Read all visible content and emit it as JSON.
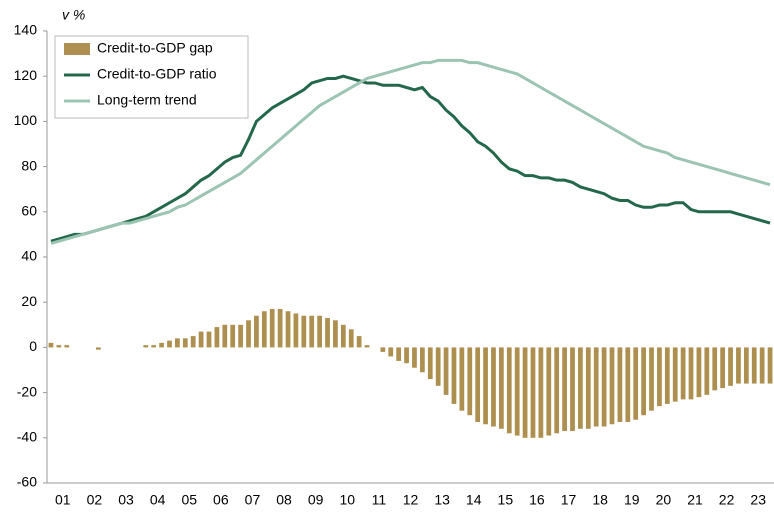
{
  "chart_data": {
    "type": "bar",
    "y_label": "v %",
    "categories": [
      "01",
      null,
      null,
      null,
      "02",
      null,
      null,
      null,
      "03",
      null,
      null,
      null,
      "04",
      null,
      null,
      null,
      "05",
      null,
      null,
      null,
      "06",
      null,
      null,
      null,
      "07",
      null,
      null,
      null,
      "08",
      null,
      null,
      null,
      "09",
      null,
      null,
      null,
      "10",
      null,
      null,
      null,
      "11",
      null,
      null,
      null,
      "12",
      null,
      null,
      null,
      "13",
      null,
      null,
      null,
      "14",
      null,
      null,
      null,
      "15",
      null,
      null,
      null,
      "16",
      null,
      null,
      null,
      "17",
      null,
      null,
      null,
      "18",
      null,
      null,
      null,
      "19",
      null,
      null,
      null,
      "20",
      null,
      null,
      null,
      "21",
      null,
      null,
      null,
      "22",
      null,
      null,
      null,
      "23",
      null,
      null,
      null
    ],
    "series": [
      {
        "name": "Credit-to-GDP gap",
        "type": "bar",
        "color": "#ad8f4f",
        "values": [
          2,
          1,
          1,
          0,
          0,
          0,
          -1,
          0,
          0,
          0,
          0,
          0,
          1,
          1,
          2,
          3,
          4,
          4,
          5,
          7,
          7,
          9,
          10,
          10,
          10,
          12,
          14,
          16,
          17,
          17,
          16,
          15,
          14,
          14,
          14,
          13,
          12,
          10,
          8,
          5,
          1,
          0,
          -2,
          -4,
          -6,
          -7,
          -9,
          -11,
          -14,
          -17,
          -21,
          -25,
          -28,
          -30,
          -33,
          -34,
          -35,
          -36,
          -38,
          -39,
          -40,
          -40,
          -40,
          -39,
          -38,
          -37,
          -37,
          -36,
          -36,
          -35,
          -35,
          -34,
          -33,
          -33,
          -32,
          -30,
          -28,
          -26,
          -25,
          -24,
          -23,
          -23,
          -22,
          -21,
          -19,
          -18,
          -17,
          -16,
          -16,
          -16,
          -16,
          -16
        ]
      },
      {
        "name": "Credit-to-GDP ratio",
        "type": "line",
        "color": "#23684a",
        "values": [
          47,
          48,
          49,
          50,
          50,
          51,
          52,
          53,
          54,
          55,
          56,
          57,
          58,
          60,
          62,
          64,
          66,
          68,
          71,
          74,
          76,
          79,
          82,
          84,
          85,
          92,
          100,
          103,
          106,
          108,
          110,
          112,
          114,
          117,
          118,
          119,
          119,
          120,
          119,
          118,
          117,
          117,
          116,
          116,
          116,
          115,
          114,
          115,
          111,
          109,
          105,
          102,
          98,
          95,
          91,
          89,
          86,
          82,
          79,
          78,
          76,
          76,
          75,
          75,
          74,
          74,
          73,
          71,
          70,
          69,
          68,
          66,
          65,
          65,
          63,
          62,
          62,
          63,
          63,
          64,
          64,
          61,
          60,
          60,
          60,
          60,
          60,
          59,
          58,
          57,
          56,
          55
        ]
      },
      {
        "name": "Long-term trend",
        "type": "line",
        "color": "#9bc4b3",
        "values": [
          46,
          47,
          48,
          49,
          50,
          51,
          52,
          53,
          54,
          55,
          55,
          56,
          57,
          58,
          59,
          60,
          62,
          63,
          65,
          67,
          69,
          71,
          73,
          75,
          77,
          80,
          83,
          86,
          89,
          92,
          95,
          98,
          101,
          104,
          107,
          109,
          111,
          113,
          115,
          117,
          119,
          120,
          121,
          122,
          123,
          124,
          125,
          126,
          126,
          127,
          127,
          127,
          127,
          126,
          126,
          125,
          124,
          123,
          122,
          121,
          119,
          117,
          115,
          113,
          111,
          109,
          107,
          105,
          103,
          101,
          99,
          97,
          95,
          93,
          91,
          89,
          88,
          87,
          86,
          84,
          83,
          82,
          81,
          80,
          79,
          78,
          77,
          76,
          75,
          74,
          73,
          72
        ]
      }
    ],
    "ylim": [
      -60,
      140
    ],
    "yticks": [
      -60,
      -40,
      -20,
      0,
      20,
      40,
      60,
      80,
      100,
      120,
      140
    ]
  }
}
